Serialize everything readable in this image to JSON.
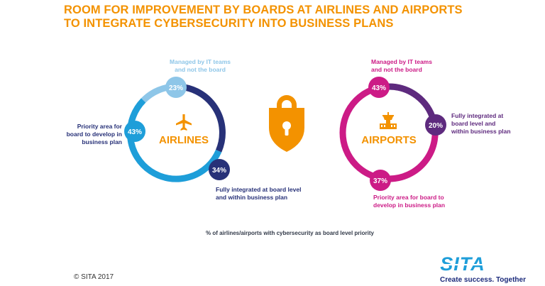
{
  "title": {
    "line1": "ROOM FOR IMPROVEMENT BY BOARDS AT AIRLINES AND AIRPORTS",
    "line2": "TO INTEGRATE CYBERSECURITY INTO BUSINESS PLANS"
  },
  "colors": {
    "title": "#f39200",
    "airlines_dark": "#273178",
    "airlines_mid": "#1e9ed9",
    "airlines_light": "#8ec6e8",
    "airports_magenta": "#cc1b86",
    "airports_purple": "#5e2a7e",
    "lock": "#f39200"
  },
  "chart_data": [
    {
      "type": "pie",
      "center_label": "AIRLINES",
      "slices": [
        {
          "label": "Managed by IT teams and not the board",
          "value": 23,
          "display": "23%",
          "color": "#8ec6e8",
          "label_color": "#8ec6e8"
        },
        {
          "label": "Fully integrated at board level and within business plan",
          "value": 34,
          "display": "34%",
          "color": "#273178",
          "label_color": "#273178"
        },
        {
          "label": "Priority area for board to develop in business plan",
          "value": 43,
          "display": "43%",
          "color": "#1e9ed9",
          "label_color": "#273178"
        }
      ]
    },
    {
      "type": "pie",
      "center_label": "AIRPORTS",
      "slices": [
        {
          "label": "Managed by IT teams and not the board",
          "value": 43,
          "display": "43%",
          "color": "#cc1b86",
          "label_color": "#cc1b86"
        },
        {
          "label": "Fully integrated at board level and within business plan",
          "value": 20,
          "display": "20%",
          "color": "#5e2a7e",
          "label_color": "#5e2a7e"
        },
        {
          "label": "Priority area for board to develop in business plan",
          "value": 37,
          "display": "37%",
          "color": "#cc1b86",
          "label_color": "#cc1b86"
        }
      ]
    }
  ],
  "airlines": {
    "center_label": "AIRLINES",
    "managed_pct": "23%",
    "managed_text_1": "Managed by IT teams",
    "managed_text_2": "and not the board",
    "priority_pct": "43%",
    "priority_text_1": "Priority area for",
    "priority_text_2": "board to develop in",
    "priority_text_3": "business plan",
    "integrated_pct": "34%",
    "integrated_text_1": "Fully integrated at board level",
    "integrated_text_2": "and within business plan"
  },
  "airports": {
    "center_label": "AIRPORTS",
    "managed_pct": "43%",
    "managed_text_1": "Managed by IT teams",
    "managed_text_2": "and not the board",
    "integrated_pct": "20%",
    "integrated_text_1": "Fully integrated at",
    "integrated_text_2": "board level and",
    "integrated_text_3": "within business plan",
    "priority_pct": "37%",
    "priority_text_1": "Priority area for board to",
    "priority_text_2": "develop in business plan"
  },
  "footnote": "% of airlines/airports with cybersecurity as board level priority",
  "copyright": "© SITA 2017",
  "logo": {
    "text": "SITA",
    "tagline": "Create success. Together"
  },
  "icons": {
    "airlines": "airplane-icon",
    "airports": "control-tower-icon",
    "center": "padlock-icon"
  }
}
